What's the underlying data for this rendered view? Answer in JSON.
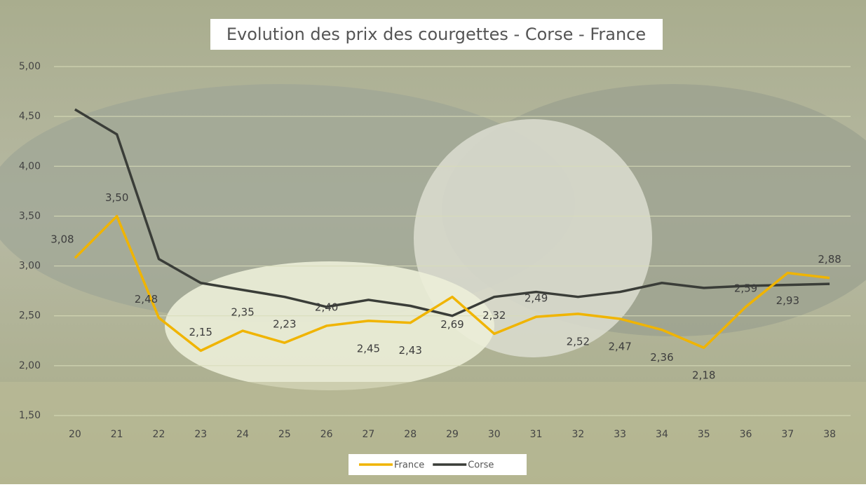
{
  "chart_data": {
    "type": "line",
    "title": "Evolution des prix des courgettes - Corse - France",
    "categories": [
      "20",
      "21",
      "22",
      "23",
      "24",
      "25",
      "26",
      "27",
      "28",
      "29",
      "30",
      "31",
      "32",
      "33",
      "34",
      "35",
      "36",
      "37",
      "38"
    ],
    "series": [
      {
        "name": "France",
        "color": "#f0b400",
        "values": [
          3.08,
          3.5,
          2.48,
          2.15,
          2.35,
          2.23,
          2.4,
          2.45,
          2.43,
          2.69,
          2.32,
          2.49,
          2.52,
          2.47,
          2.36,
          2.18,
          2.59,
          2.93,
          2.88
        ],
        "value_labels": [
          "3,08",
          "3,50",
          "2,48",
          "2,15",
          "2,35",
          "2,23",
          "2,40",
          "2,45",
          "2,43",
          "2,69",
          "2,32",
          "2,49",
          "2,52",
          "2,47",
          "2,36",
          "2,18",
          "2,59",
          "2,93",
          "2,88"
        ]
      },
      {
        "name": "Corse",
        "color": "#3a3d38",
        "values": [
          4.57,
          4.32,
          3.07,
          2.83,
          2.76,
          2.69,
          2.59,
          2.66,
          2.6,
          2.5,
          2.69,
          2.74,
          2.69,
          2.74,
          2.83,
          2.78,
          2.8,
          2.81,
          2.82
        ]
      }
    ],
    "ylim": [
      1.5,
      5
    ],
    "yticks": [
      {
        "value": 1.5,
        "label": "1,50"
      },
      {
        "value": 2,
        "label": "2,00"
      },
      {
        "value": 2.5,
        "label": "2,50"
      },
      {
        "value": 3,
        "label": "3,00"
      },
      {
        "value": 3.5,
        "label": "3,50"
      },
      {
        "value": 4,
        "label": "4,00"
      },
      {
        "value": 4.5,
        "label": "4,50"
      },
      {
        "value": 5,
        "label": "5,00"
      }
    ],
    "grid": true,
    "legend": "bottom"
  }
}
